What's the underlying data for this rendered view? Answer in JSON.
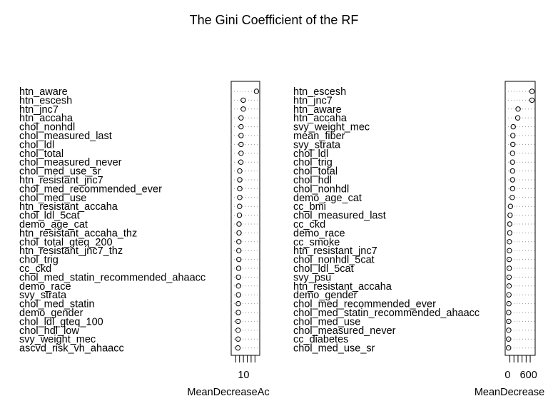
{
  "chart_data": {
    "title": "The Gini Coefficient of the RF",
    "type": "scatter",
    "panels": [
      {
        "type": "scatter",
        "xlabel": "MeanDecreaseAc",
        "xticks": [
          10
        ],
        "xlim": [
          4,
          18
        ],
        "categories": [
          "htn_aware",
          "htn_escesh",
          "htn_jnc7",
          "htn_accaha",
          "chol_nonhdl",
          "chol_measured_last",
          "chol_ldl",
          "chol_total",
          "chol_measured_never",
          "chol_med_use_sr",
          "htn_resistant_jnc7",
          "chol_med_recommended_ever",
          "chol_med_use",
          "htn_resistant_accaha",
          "chol_ldl_5cat",
          "demo_age_cat",
          "htn_resistant_accaha_thz",
          "chol_total_gteq_200",
          "htn_resistant_jnc7_thz",
          "chol_trig",
          "cc_ckd",
          "chol_med_statin_recommended_ahaacc",
          "demo_race",
          "svy_strata",
          "chol_med_statin",
          "demo_gender",
          "chol_ldl_gteq_100",
          "chol_hdl_low",
          "svy_weight_mec",
          "ascvd_risk_vh_ahaacc"
        ],
        "values": [
          17.0,
          9.8,
          9.8,
          8.6,
          8.6,
          8.6,
          8.6,
          8.6,
          8.5,
          7.9,
          7.9,
          7.9,
          7.9,
          7.8,
          7.7,
          7.5,
          7.5,
          7.4,
          7.4,
          7.4,
          7.3,
          7.2,
          7.2,
          7.2,
          7.1,
          7.1,
          7.0,
          7.0,
          7.0,
          6.9
        ]
      },
      {
        "type": "scatter",
        "xlabel": "MeanDecrease",
        "xticks": [
          0,
          600
        ],
        "xlim": [
          -30,
          750
        ],
        "categories": [
          "htn_escesh",
          "htn_jnc7",
          "htn_aware",
          "htn_accaha",
          "svy_weight_mec",
          "mean_fiber",
          "svy_strata",
          "chol_ldl",
          "chol_trig",
          "chol_total",
          "chol_hdl",
          "chol_nonhdl",
          "demo_age_cat",
          "cc_bmi",
          "chol_measured_last",
          "cc_ckd",
          "demo_race",
          "cc_smoke",
          "htn_resistant_jnc7",
          "chol_nonhdl_5cat",
          "chol_ldl_5cat",
          "svy_psu",
          "htn_resistant_accaha",
          "demo_gender",
          "chol_med_recommended_ever",
          "chol_med_statin_recommended_ahaacc",
          "chol_med_use",
          "chol_measured_never",
          "cc_diabetes",
          "chol_med_use_sr"
        ],
        "values": [
          700,
          700,
          300,
          290,
          160,
          150,
          150,
          140,
          140,
          140,
          140,
          140,
          130,
          80,
          70,
          60,
          60,
          50,
          50,
          45,
          45,
          40,
          40,
          35,
          35,
          30,
          30,
          30,
          25,
          25
        ]
      }
    ]
  }
}
